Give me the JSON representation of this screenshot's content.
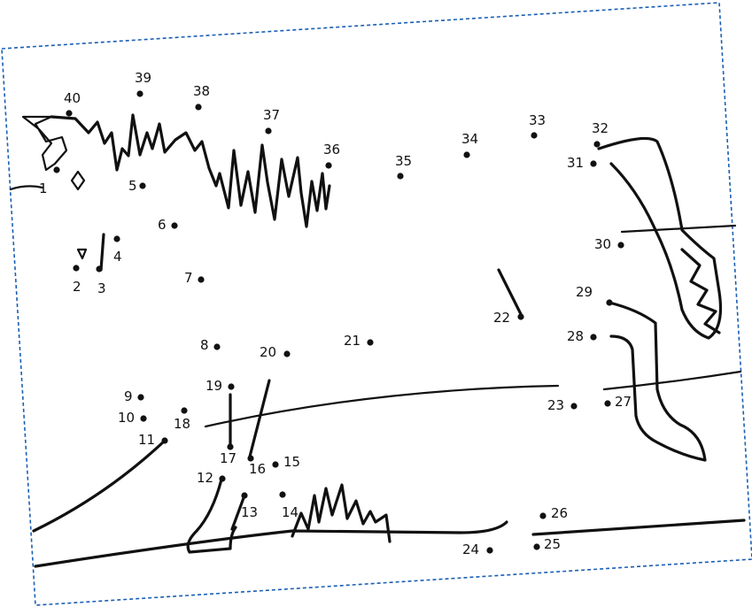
{
  "worksheet": {
    "border_color": "#1a5fb4",
    "ink_color": "#111111",
    "dots": [
      {
        "label": "1"
      },
      {
        "label": "2"
      },
      {
        "label": "3"
      },
      {
        "label": "4"
      },
      {
        "label": "5"
      },
      {
        "label": "6"
      },
      {
        "label": "7"
      },
      {
        "label": "8"
      },
      {
        "label": "9"
      },
      {
        "label": "10"
      },
      {
        "label": "11"
      },
      {
        "label": "12"
      },
      {
        "label": "13"
      },
      {
        "label": "14"
      },
      {
        "label": "15"
      },
      {
        "label": "16"
      },
      {
        "label": "17"
      },
      {
        "label": "18"
      },
      {
        "label": "19"
      },
      {
        "label": "20"
      },
      {
        "label": "21"
      },
      {
        "label": "22"
      },
      {
        "label": "23"
      },
      {
        "label": "24"
      },
      {
        "label": "25"
      },
      {
        "label": "26"
      },
      {
        "label": "27"
      },
      {
        "label": "28"
      },
      {
        "label": "29"
      },
      {
        "label": "30"
      },
      {
        "label": "31"
      },
      {
        "label": "32"
      },
      {
        "label": "33"
      },
      {
        "label": "34"
      },
      {
        "label": "35"
      },
      {
        "label": "36"
      },
      {
        "label": "37"
      },
      {
        "label": "38"
      },
      {
        "label": "39"
      },
      {
        "label": "40"
      }
    ]
  }
}
